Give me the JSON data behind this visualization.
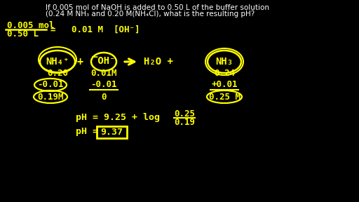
{
  "bg_color": "#000000",
  "text_color": "#FFFF00",
  "white_color": "#FFFFFF",
  "title_line1": "If 0.005 mol of NaOH is added to 0.50 L of the buffer solution",
  "title_line2": "(0.24 M NH₃ and 0.20 M(NH₄Cl), what is the resulting pH?",
  "fraction_num": "0.005 mol",
  "fraction_den": "0.50 L",
  "concentration": "0.01 M  [OH⁻]",
  "nh4_label": "NH₄⁺",
  "oh_label": "OH⁻",
  "h2o_label": "H₂O +",
  "nh3_label": "NH₃",
  "col1_r1": "0.20",
  "col1_r2": "-0.01",
  "col1_r3": "0.19M",
  "col2_r1": "0.01M",
  "col2_r2": "-0.01",
  "col2_r3": "0",
  "col3_r1": "0.24",
  "col3_r2": "+0.01",
  "col3_r3": "0.25 M",
  "ph_eq": "pH = 9.25 + log",
  "frac2_num": "0.25",
  "frac2_den": "0.19",
  "ph_result": "pH = ",
  "ph_box": "9.37"
}
